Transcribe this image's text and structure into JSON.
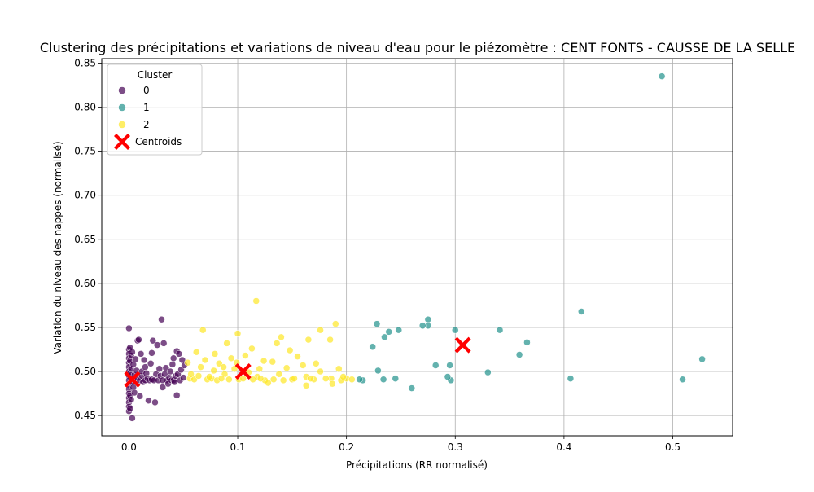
{
  "chart_data": {
    "type": "scatter",
    "title": "Clustering des précipitations et variations de niveau d'eau pour le piézomètre : CENT FONTS - CAUSSE DE LA SELLE",
    "xlabel": "Précipitations (RR normalisé)",
    "ylabel": "Variation du niveau des nappes (normalisé)",
    "xlim": [
      -0.025,
      0.555
    ],
    "ylim": [
      0.427,
      0.855
    ],
    "xticks": [
      0.0,
      0.1,
      0.2,
      0.3,
      0.4,
      0.5
    ],
    "xtick_labels": [
      "0.0",
      "0.1",
      "0.2",
      "0.3",
      "0.4",
      "0.5"
    ],
    "yticks": [
      0.45,
      0.5,
      0.55,
      0.6,
      0.65,
      0.7,
      0.75,
      0.8,
      0.85
    ],
    "ytick_labels": [
      "0.45",
      "0.50",
      "0.55",
      "0.60",
      "0.65",
      "0.70",
      "0.75",
      "0.80",
      "0.85"
    ],
    "grid": true,
    "legend": {
      "title": "Cluster",
      "placement": "top-left",
      "entries": [
        "0",
        "1",
        "2",
        "Centroids"
      ]
    },
    "series": [
      {
        "name": "0",
        "color": "#440154",
        "points": [
          [
            0,
            0.549
          ],
          [
            0,
            0.525
          ],
          [
            0,
            0.52
          ],
          [
            0,
            0.515
          ],
          [
            0,
            0.51
          ],
          [
            0,
            0.505
          ],
          [
            0,
            0.5
          ],
          [
            0,
            0.495
          ],
          [
            0,
            0.49
          ],
          [
            0,
            0.485
          ],
          [
            0,
            0.48
          ],
          [
            0,
            0.475
          ],
          [
            0,
            0.47
          ],
          [
            0,
            0.465
          ],
          [
            0,
            0.46
          ],
          [
            0,
            0.455
          ],
          [
            0.001,
            0.527
          ],
          [
            0.001,
            0.512
          ],
          [
            0.001,
            0.498
          ],
          [
            0.001,
            0.473
          ],
          [
            0.001,
            0.458
          ],
          [
            0.002,
            0.518
          ],
          [
            0.002,
            0.503
          ],
          [
            0.002,
            0.488
          ],
          [
            0.002,
            0.468
          ],
          [
            0.003,
            0.447
          ],
          [
            0.003,
            0.522
          ],
          [
            0.003,
            0.492
          ],
          [
            0.004,
            0.508
          ],
          [
            0.004,
            0.482
          ],
          [
            0.005,
            0.496
          ],
          [
            0.005,
            0.476
          ],
          [
            0.006,
            0.514
          ],
          [
            0.006,
            0.489
          ],
          [
            0.007,
            0.501
          ],
          [
            0.008,
            0.493
          ],
          [
            0.008,
            0.535
          ],
          [
            0.009,
            0.536
          ],
          [
            0.01,
            0.49
          ],
          [
            0.01,
            0.472
          ],
          [
            0.011,
            0.52
          ],
          [
            0.012,
            0.495
          ],
          [
            0.012,
            0.5
          ],
          [
            0.013,
            0.488
          ],
          [
            0.014,
            0.513
          ],
          [
            0.015,
            0.49
          ],
          [
            0.015,
            0.505
          ],
          [
            0.016,
            0.498
          ],
          [
            0.017,
            0.492
          ],
          [
            0.018,
            0.467
          ],
          [
            0.019,
            0.49
          ],
          [
            0.02,
            0.509
          ],
          [
            0.021,
            0.521
          ],
          [
            0.021,
            0.491
          ],
          [
            0.022,
            0.535
          ],
          [
            0.023,
            0.49
          ],
          [
            0.024,
            0.465
          ],
          [
            0.025,
            0.497
          ],
          [
            0.026,
            0.53
          ],
          [
            0.027,
            0.49
          ],
          [
            0.028,
            0.503
          ],
          [
            0.029,
            0.495
          ],
          [
            0.03,
            0.559
          ],
          [
            0.031,
            0.49
          ],
          [
            0.031,
            0.482
          ],
          [
            0.032,
            0.532
          ],
          [
            0.033,
            0.497
          ],
          [
            0.034,
            0.504
          ],
          [
            0.035,
            0.49
          ],
          [
            0.036,
            0.486
          ],
          [
            0.037,
            0.493
          ],
          [
            0.038,
            0.5
          ],
          [
            0.039,
            0.49
          ],
          [
            0.04,
            0.508
          ],
          [
            0.041,
            0.515
          ],
          [
            0.041,
            0.49
          ],
          [
            0.042,
            0.488
          ],
          [
            0.043,
            0.495
          ],
          [
            0.044,
            0.523
          ],
          [
            0.044,
            0.473
          ],
          [
            0.045,
            0.497
          ],
          [
            0.046,
            0.52
          ],
          [
            0.047,
            0.49
          ],
          [
            0.048,
            0.502
          ],
          [
            0.049,
            0.513
          ],
          [
            0.05,
            0.493
          ],
          [
            0.051,
            0.507
          ]
        ]
      },
      {
        "name": "1",
        "color": "#21918c",
        "points": [
          [
            0.49,
            0.835
          ],
          [
            0.416,
            0.568
          ],
          [
            0.527,
            0.514
          ],
          [
            0.509,
            0.491
          ],
          [
            0.406,
            0.492
          ],
          [
            0.366,
            0.533
          ],
          [
            0.359,
            0.519
          ],
          [
            0.341,
            0.547
          ],
          [
            0.33,
            0.499
          ],
          [
            0.3,
            0.547
          ],
          [
            0.296,
            0.49
          ],
          [
            0.295,
            0.507
          ],
          [
            0.293,
            0.494
          ],
          [
            0.282,
            0.507
          ],
          [
            0.275,
            0.559
          ],
          [
            0.275,
            0.552
          ],
          [
            0.27,
            0.552
          ],
          [
            0.26,
            0.481
          ],
          [
            0.248,
            0.547
          ],
          [
            0.245,
            0.492
          ],
          [
            0.239,
            0.545
          ],
          [
            0.235,
            0.539
          ],
          [
            0.234,
            0.491
          ],
          [
            0.229,
            0.501
          ],
          [
            0.228,
            0.554
          ],
          [
            0.224,
            0.528
          ],
          [
            0.215,
            0.49
          ],
          [
            0.212,
            0.491
          ]
        ]
      },
      {
        "name": "2",
        "color": "#fde725",
        "points": [
          [
            0.117,
            0.58
          ],
          [
            0.19,
            0.554
          ],
          [
            0.176,
            0.547
          ],
          [
            0.068,
            0.547
          ],
          [
            0.1,
            0.543
          ],
          [
            0.14,
            0.539
          ],
          [
            0.165,
            0.536
          ],
          [
            0.113,
            0.526
          ],
          [
            0.136,
            0.532
          ],
          [
            0.148,
            0.524
          ],
          [
            0.09,
            0.532
          ],
          [
            0.185,
            0.536
          ],
          [
            0.062,
            0.522
          ],
          [
            0.079,
            0.52
          ],
          [
            0.107,
            0.518
          ],
          [
            0.124,
            0.512
          ],
          [
            0.155,
            0.517
          ],
          [
            0.172,
            0.509
          ],
          [
            0.094,
            0.515
          ],
          [
            0.07,
            0.513
          ],
          [
            0.083,
            0.509
          ],
          [
            0.132,
            0.511
          ],
          [
            0.145,
            0.504
          ],
          [
            0.16,
            0.507
          ],
          [
            0.176,
            0.5
          ],
          [
            0.193,
            0.503
          ],
          [
            0.054,
            0.51
          ],
          [
            0.066,
            0.505
          ],
          [
            0.078,
            0.501
          ],
          [
            0.088,
            0.497
          ],
          [
            0.097,
            0.503
          ],
          [
            0.101,
            0.491
          ],
          [
            0.11,
            0.499
          ],
          [
            0.118,
            0.494
          ],
          [
            0.125,
            0.49
          ],
          [
            0.138,
            0.497
          ],
          [
            0.15,
            0.491
          ],
          [
            0.163,
            0.494
          ],
          [
            0.17,
            0.491
          ],
          [
            0.186,
            0.492
          ],
          [
            0.2,
            0.492
          ],
          [
            0.205,
            0.491
          ],
          [
            0.056,
            0.492
          ],
          [
            0.06,
            0.491
          ],
          [
            0.064,
            0.495
          ],
          [
            0.072,
            0.491
          ],
          [
            0.076,
            0.492
          ],
          [
            0.081,
            0.49
          ],
          [
            0.085,
            0.492
          ],
          [
            0.092,
            0.491
          ],
          [
            0.105,
            0.492
          ],
          [
            0.114,
            0.491
          ],
          [
            0.121,
            0.492
          ],
          [
            0.128,
            0.487
          ],
          [
            0.133,
            0.491
          ],
          [
            0.142,
            0.49
          ],
          [
            0.152,
            0.492
          ],
          [
            0.163,
            0.484
          ],
          [
            0.187,
            0.486
          ],
          [
            0.195,
            0.49
          ],
          [
            0.057,
            0.497
          ],
          [
            0.074,
            0.494
          ],
          [
            0.087,
            0.505
          ],
          [
            0.099,
            0.51
          ],
          [
            0.12,
            0.503
          ],
          [
            0.167,
            0.492
          ],
          [
            0.181,
            0.492
          ],
          [
            0.197,
            0.494
          ]
        ]
      }
    ],
    "centroids": {
      "name": "Centroids",
      "color": "#ff0000",
      "points": [
        [
          0.003,
          0.491
        ],
        [
          0.105,
          0.5
        ],
        [
          0.307,
          0.53
        ]
      ]
    }
  }
}
